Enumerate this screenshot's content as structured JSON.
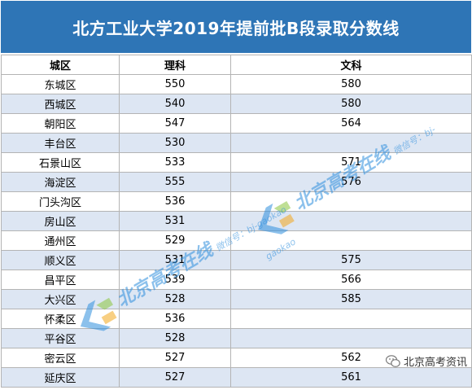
{
  "title": "北方工业大学2019年提前批B段录取分数线",
  "columns": [
    "城区",
    "理科",
    "文科"
  ],
  "rows": [
    [
      "东城区",
      "550",
      "580"
    ],
    [
      "西城区",
      "540",
      "580"
    ],
    [
      "朝阳区",
      "547",
      "564"
    ],
    [
      "丰台区",
      "530",
      ""
    ],
    [
      "石景山区",
      "533",
      "571"
    ],
    [
      "海淀区",
      "555",
      "576"
    ],
    [
      "门头沟区",
      "536",
      ""
    ],
    [
      "房山区",
      "531",
      ""
    ],
    [
      "通州区",
      "529",
      ""
    ],
    [
      "顺义区",
      "531",
      "575"
    ],
    [
      "昌平区",
      "539",
      "566"
    ],
    [
      "大兴区",
      "528",
      "585"
    ],
    [
      "怀柔区",
      "536",
      ""
    ],
    [
      "平谷区",
      "528",
      ""
    ],
    [
      "密云区",
      "527",
      "562"
    ],
    [
      "延庆区",
      "527",
      "561"
    ]
  ],
  "watermark": {
    "main": "北京高考在线",
    "sub": "微信号：bj-gaokao"
  },
  "corner_label": "北京高考资讯",
  "colors": {
    "header_bg": "#2e75b6",
    "stripe": "#dde6f3",
    "watermark": "#2f8fde"
  }
}
